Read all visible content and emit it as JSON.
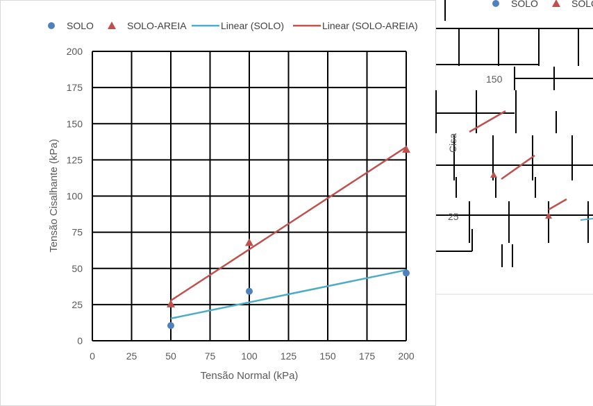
{
  "chart_data": {
    "type": "scatter",
    "xlabel": "Tensão Normal (kPa)",
    "ylabel": "Tensão Cisalhante (kPa)",
    "xlim": [
      0,
      200
    ],
    "ylim": [
      0,
      200
    ],
    "xticks": [
      "0",
      "25",
      "50",
      "75",
      "100",
      "125",
      "150",
      "175",
      "200"
    ],
    "yticks": [
      "0",
      "25",
      "50",
      "75",
      "100",
      "125",
      "150",
      "175",
      "200"
    ],
    "grid": true,
    "legend_position": "top",
    "legend": {
      "solo": "SOLO",
      "solo_areia": "SOLO-AREIA",
      "linear_solo": "Linear (SOLO)",
      "linear_solo_areia": "Linear (SOLO-AREIA)"
    },
    "series": [
      {
        "name": "SOLO",
        "marker": "circle",
        "color": "#4f81bd",
        "x": [
          50,
          100,
          200
        ],
        "y": [
          10.5,
          34.2,
          46.8
        ]
      },
      {
        "name": "SOLO-AREIA",
        "marker": "triangle",
        "color": "#c0504d",
        "x": [
          50,
          100,
          200
        ],
        "y": [
          25.5,
          67.9,
          132.3
        ]
      }
    ],
    "trendlines": [
      {
        "name": "Linear (SOLO)",
        "color": "#4bacc6",
        "x": [
          50,
          200
        ],
        "y": [
          15.4,
          48.9
        ]
      },
      {
        "name": "Linear (SOLO-AREIA)",
        "color": "#c0504d",
        "x": [
          50,
          200
        ],
        "y": [
          27.8,
          133.9
        ]
      }
    ]
  },
  "overlay": {
    "legend_solo": "SOLO",
    "legend_solo_areia": "SOLO-AREIA",
    "tick_150": "150",
    "tick_25": "25",
    "ylabel_fragment": "Cisa"
  }
}
